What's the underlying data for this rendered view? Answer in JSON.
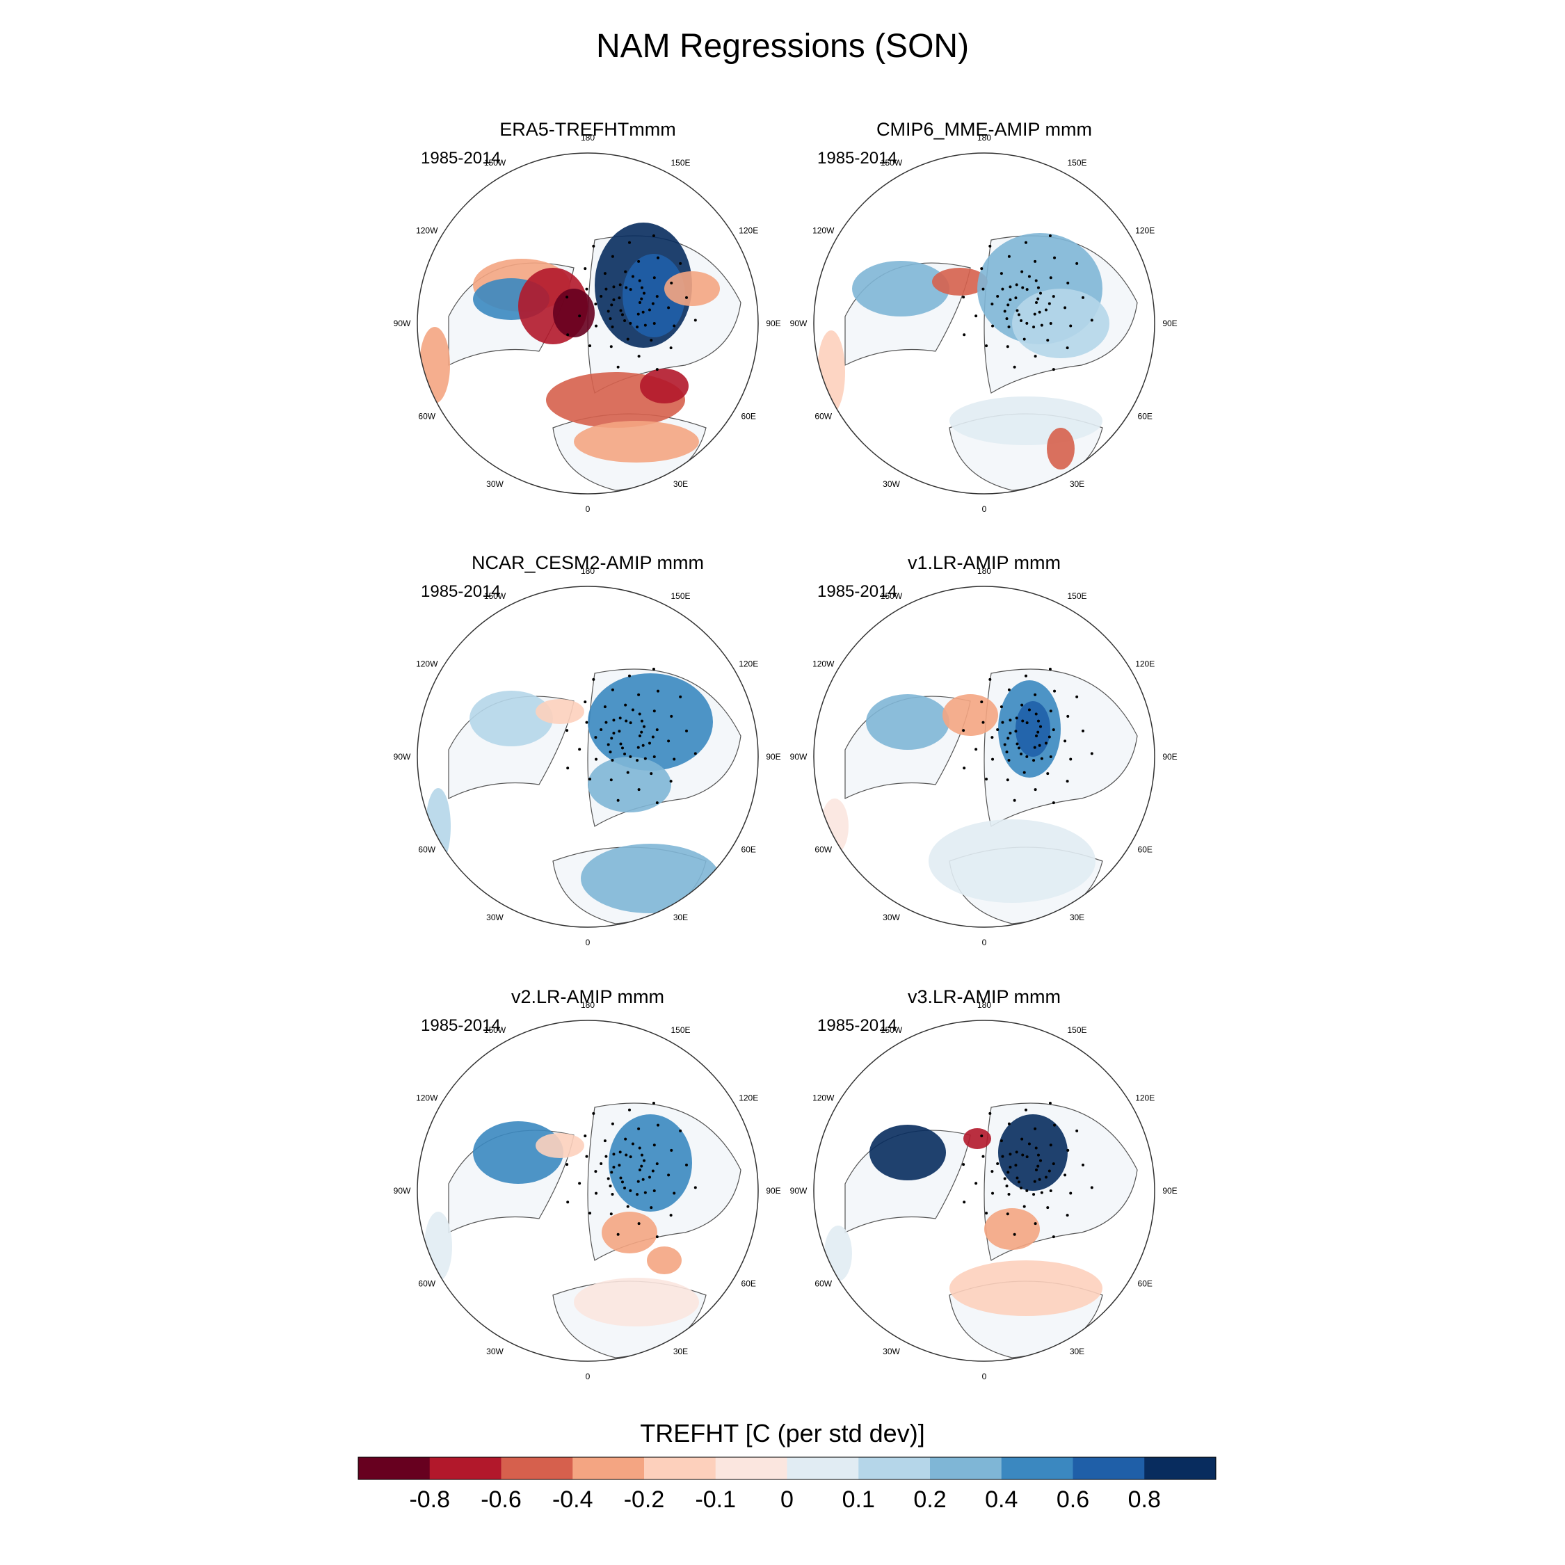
{
  "figure": {
    "title": "NAM Regressions (SON)"
  },
  "panels": [
    {
      "title": "ERA5-TREFHTmmm",
      "period": "1985-2014"
    },
    {
      "title": "CMIP6_MME-AMIP  mmm",
      "period": "1985-2014"
    },
    {
      "title": "NCAR_CESM2-AMIP  mmm",
      "period": "1985-2014"
    },
    {
      "title": "v1.LR-AMIP  mmm",
      "period": "1985-2014"
    },
    {
      "title": "v2.LR-AMIP  mmm",
      "period": "1985-2014"
    },
    {
      "title": "v3.LR-AMIP  mmm",
      "period": "1985-2014"
    }
  ],
  "longitude_labels": [
    "180",
    "150E",
    "120E",
    "90E",
    "60E",
    "30E",
    "0",
    "30W",
    "60W",
    "90W",
    "120W",
    "150W"
  ],
  "colorbar": {
    "title": "TREFHT [C (per std dev)]",
    "tick_labels": [
      "-0.8",
      "-0.6",
      "-0.4",
      "-0.2",
      "-0.1",
      "0",
      "0.1",
      "0.2",
      "0.4",
      "0.6",
      "0.8"
    ],
    "colors": [
      "#67001f",
      "#b2182b",
      "#d6604d",
      "#f4a582",
      "#fdd0bc",
      "#fbe6df",
      "#e1ecf3",
      "#b5d6e9",
      "#7fb6d6",
      "#3b88c0",
      "#1f5fa8",
      "#082c5e"
    ]
  },
  "map_colors": {
    "land_outline": "#555555",
    "ocean": "#ffffff",
    "stipple": "#000000"
  }
}
